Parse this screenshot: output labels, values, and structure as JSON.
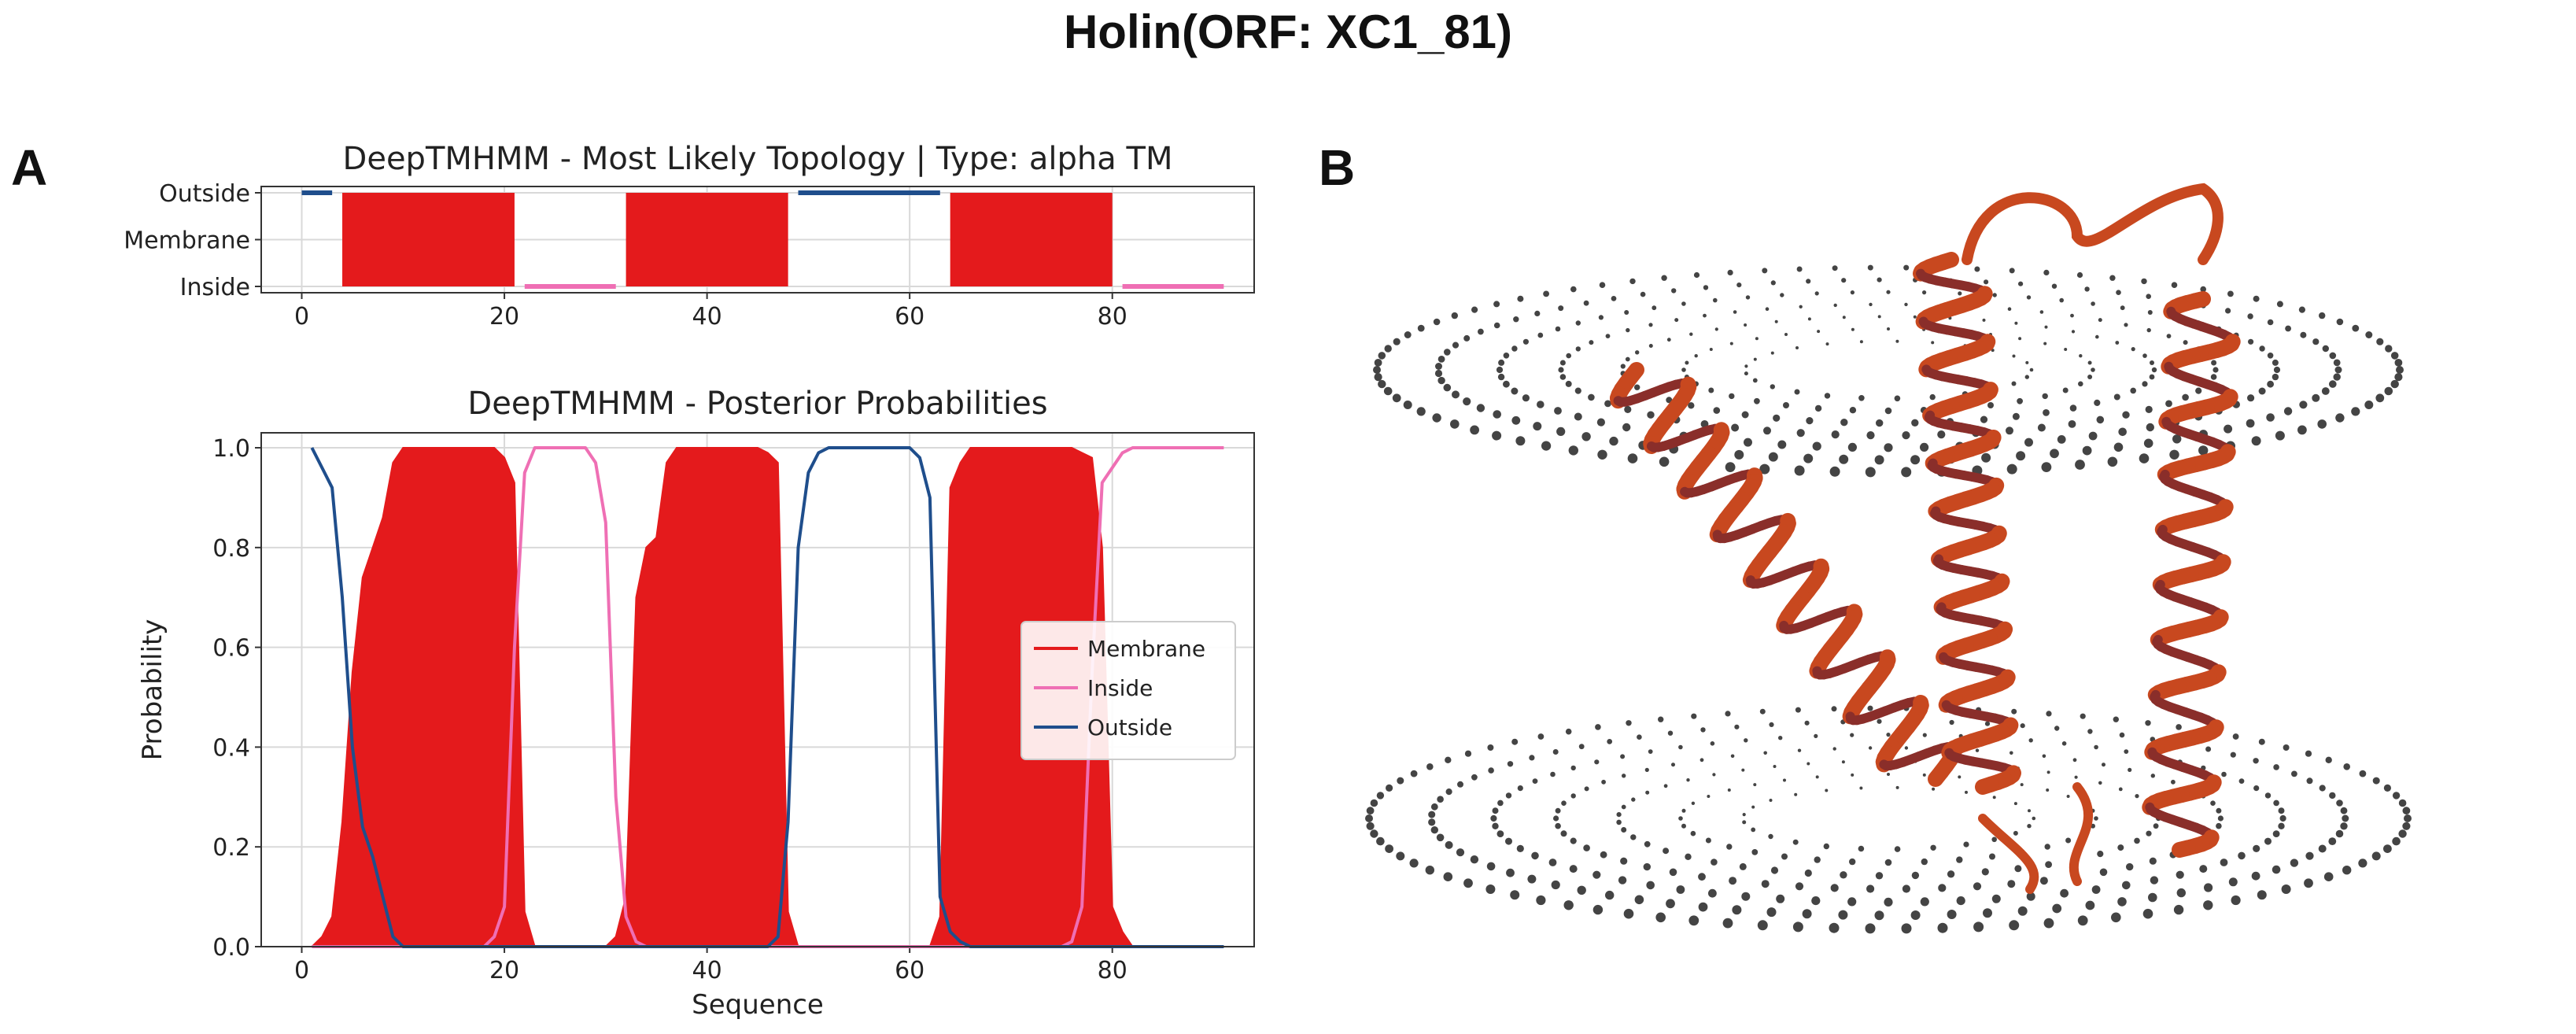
{
  "figure": {
    "title": "Holin(ORF: XC1_81)",
    "panel_a_label": "A",
    "panel_b_label": "B",
    "panel_b_description": "3D ribbon structure of holin with membrane boundary planes"
  },
  "colors": {
    "membrane": "#e41a1c",
    "inside": "#ef6fb4",
    "outside": "#1f4e8c",
    "grid": "#d9d9d9",
    "ribbon": "#c8481f",
    "ribbon_dark": "#8a2e2a",
    "dots": "#444444"
  },
  "chart_data": [
    {
      "type": "area",
      "title": "DeepTMHMM - Most Likely Topology | Type: alpha TM",
      "xlim": [
        -4,
        94
      ],
      "x_ticks": [
        0,
        20,
        40,
        60,
        80
      ],
      "y_categories": [
        "Outside",
        "Membrane",
        "Inside"
      ],
      "segments": [
        {
          "region": "Outside",
          "start": 0,
          "end": 3
        },
        {
          "region": "Membrane",
          "start": 4,
          "end": 21
        },
        {
          "region": "Inside",
          "start": 22,
          "end": 31
        },
        {
          "region": "Membrane",
          "start": 32,
          "end": 48
        },
        {
          "region": "Outside",
          "start": 49,
          "end": 63
        },
        {
          "region": "Membrane",
          "start": 64,
          "end": 80
        },
        {
          "region": "Inside",
          "start": 81,
          "end": 91
        }
      ]
    },
    {
      "type": "line",
      "title": "DeepTMHMM - Posterior Probabilities",
      "xlabel": "Sequence",
      "ylabel": "Probability",
      "xlim": [
        -4,
        94
      ],
      "ylim": [
        0,
        1.03
      ],
      "x_ticks": [
        0,
        20,
        40,
        60,
        80
      ],
      "y_ticks": [
        "0.0",
        "0.2",
        "0.4",
        "0.6",
        "0.8",
        "1.0"
      ],
      "legend": {
        "position": "right",
        "entries": [
          "Membrane",
          "Inside",
          "Outside"
        ]
      },
      "series": [
        {
          "name": "Membrane",
          "style": "filled",
          "x": [
            1,
            2,
            3,
            4,
            5,
            6,
            7,
            8,
            9,
            10,
            11,
            12,
            13,
            14,
            15,
            16,
            17,
            18,
            19,
            20,
            21,
            22,
            23,
            24,
            25,
            26,
            27,
            28,
            29,
            30,
            31,
            32,
            33,
            34,
            35,
            36,
            37,
            38,
            39,
            40,
            41,
            42,
            43,
            44,
            45,
            46,
            47,
            48,
            49,
            50,
            51,
            52,
            53,
            54,
            55,
            56,
            57,
            58,
            59,
            60,
            61,
            62,
            63,
            64,
            65,
            66,
            67,
            68,
            69,
            70,
            71,
            72,
            73,
            74,
            75,
            76,
            77,
            78,
            79,
            80,
            81,
            82,
            83,
            84,
            85,
            86,
            87,
            88,
            89,
            90,
            91
          ],
          "y": [
            0.0,
            0.02,
            0.06,
            0.25,
            0.55,
            0.74,
            0.8,
            0.86,
            0.97,
            1.0,
            1.0,
            1.0,
            1.0,
            1.0,
            1.0,
            1.0,
            1.0,
            1.0,
            1.0,
            0.98,
            0.93,
            0.07,
            0.0,
            0.0,
            0.0,
            0.0,
            0.0,
            0.0,
            0.0,
            0.0,
            0.02,
            0.1,
            0.7,
            0.8,
            0.82,
            0.97,
            1.0,
            1.0,
            1.0,
            1.0,
            1.0,
            1.0,
            1.0,
            1.0,
            1.0,
            0.99,
            0.97,
            0.07,
            0.0,
            0.0,
            0.0,
            0.0,
            0.0,
            0.0,
            0.0,
            0.0,
            0.0,
            0.0,
            0.0,
            0.0,
            0.0,
            0.0,
            0.06,
            0.92,
            0.97,
            1.0,
            1.0,
            1.0,
            1.0,
            1.0,
            1.0,
            1.0,
            1.0,
            1.0,
            1.0,
            1.0,
            0.99,
            0.98,
            0.8,
            0.08,
            0.03,
            0.0,
            0.0,
            0.0,
            0.0,
            0.0,
            0.0,
            0.0,
            0.0,
            0.0,
            0.0
          ]
        },
        {
          "name": "Inside",
          "style": "line",
          "x": [
            1,
            18,
            19,
            20,
            21,
            22,
            23,
            24,
            28,
            29,
            30,
            31,
            32,
            33,
            34,
            35,
            75,
            76,
            77,
            78,
            79,
            80,
            81,
            82,
            83,
            91
          ],
          "y": [
            0.0,
            0.0,
            0.02,
            0.08,
            0.6,
            0.95,
            1.0,
            1.0,
            1.0,
            0.97,
            0.85,
            0.3,
            0.06,
            0.01,
            0.0,
            0.0,
            0.0,
            0.01,
            0.08,
            0.55,
            0.93,
            0.96,
            0.99,
            1.0,
            1.0,
            1.0
          ]
        },
        {
          "name": "Outside",
          "style": "line",
          "x": [
            1,
            2,
            3,
            4,
            5,
            6,
            7,
            8,
            9,
            10,
            46,
            47,
            48,
            49,
            50,
            51,
            52,
            60,
            61,
            62,
            63,
            64,
            65,
            66,
            91
          ],
          "y": [
            1.0,
            0.96,
            0.92,
            0.7,
            0.4,
            0.24,
            0.18,
            0.1,
            0.02,
            0.0,
            0.0,
            0.02,
            0.25,
            0.8,
            0.95,
            0.99,
            1.0,
            1.0,
            0.98,
            0.9,
            0.1,
            0.03,
            0.01,
            0.0,
            0.0
          ]
        }
      ]
    }
  ]
}
